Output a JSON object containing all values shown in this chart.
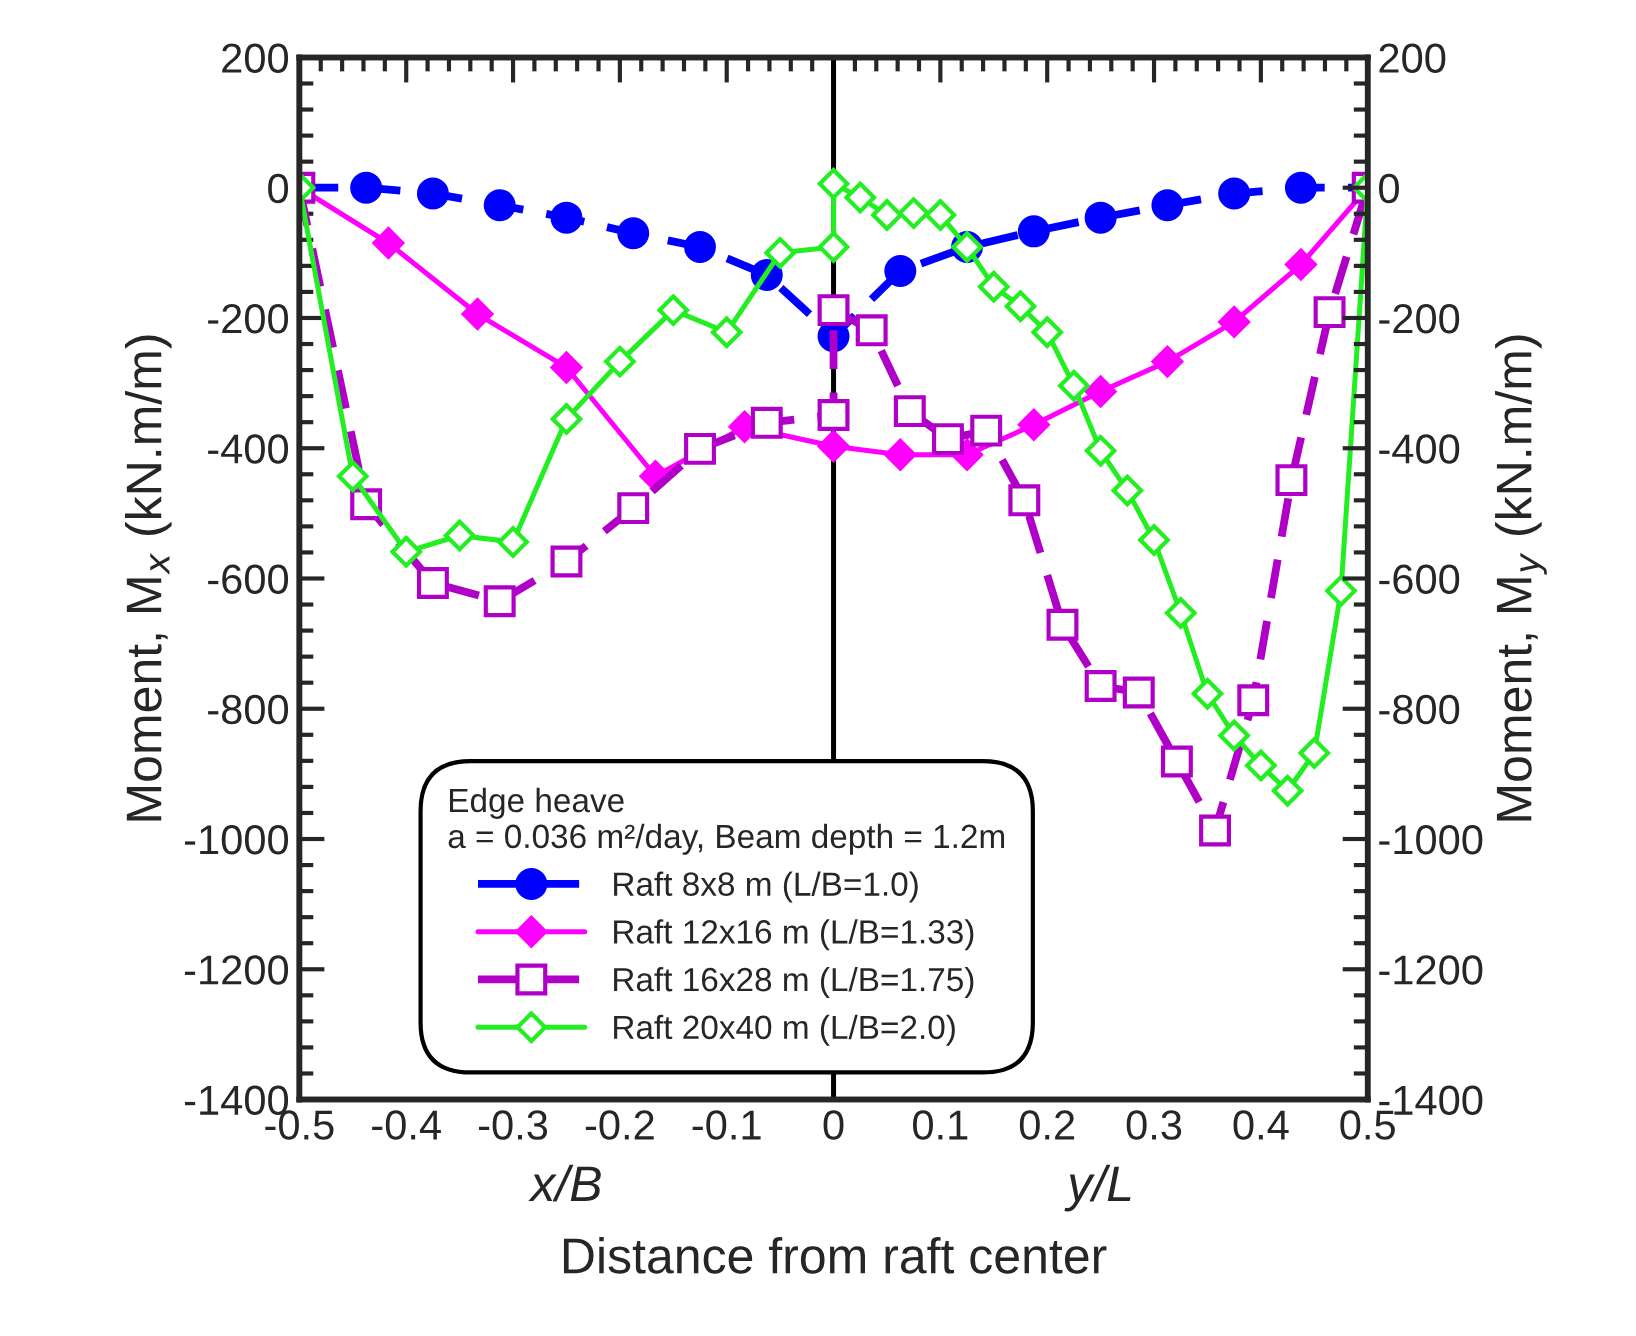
{
  "chart_data": {
    "type": "line",
    "xlabel": "Distance from raft center",
    "ylabel": "Moment, M$_{x}$ (kN.m/m)",
    "y2label": "Moment, M$_{y}$ (kN.m/m)",
    "legend_title": "Edge heave\na = 0.036 m²/day, Beam depth = 1.2m",
    "annotations": [
      "x/B",
      "y/L"
    ],
    "xlim": [
      -0.5,
      0.5
    ],
    "xticks": [
      -0.5,
      -0.4,
      -0.3,
      -0.2,
      -0.1,
      0,
      0.1,
      0.2,
      0.3,
      0.4,
      0.5
    ],
    "ylim": [
      -1400,
      200
    ],
    "yticks": [
      -1400,
      -1200,
      -1000,
      -800,
      -600,
      -400,
      -200,
      0,
      200
    ],
    "y2lim": [
      -1400,
      200
    ],
    "y2ticks": [
      -1400,
      -1200,
      -1000,
      -800,
      -600,
      -400,
      -200,
      0,
      200
    ],
    "grid": false,
    "legend": "bottom",
    "ref_lines": [
      {
        "axis": "x",
        "value": 0,
        "color": "#000000"
      }
    ],
    "series": [
      {
        "name": "Raft 8x8 m (L/B=1.0)",
        "color": "#0000ff",
        "marker": "circle",
        "line_style": "dashed",
        "x": [
          -0.5,
          -0.4375,
          -0.375,
          -0.3125,
          -0.25,
          -0.1875,
          -0.125,
          -0.0625,
          0,
          0.0625,
          0.125,
          0.1875,
          0.25,
          0.3125,
          0.375,
          0.4375,
          0.5
        ],
        "values": [
          0,
          0,
          -9,
          -27,
          -46,
          -70,
          -91,
          -134,
          -228,
          -128,
          -91,
          -67,
          -46,
          -27,
          -9,
          0,
          0
        ]
      },
      {
        "name": "Raft 12x16 m (L/B=1.33)",
        "color": "#ff00ff",
        "marker": "diamond",
        "line_style": "solid",
        "x": [
          -0.5,
          -0.4167,
          -0.3333,
          -0.25,
          -0.1667,
          -0.0833,
          0,
          0.0625,
          0.125,
          0.1875,
          0.25,
          0.3125,
          0.375,
          0.4375,
          0.5
        ],
        "values": [
          0,
          -85,
          -194,
          -276,
          -443,
          -367,
          -397,
          -410,
          -410,
          -364,
          -313,
          -267,
          -206,
          -118,
          0
        ]
      },
      {
        "name": "Raft 16x28 m (L/B=1.75)",
        "color": "#b000c8",
        "marker": "square",
        "line_style": "dashed",
        "x": [
          -0.5,
          -0.4375,
          -0.375,
          -0.3125,
          -0.25,
          -0.1875,
          -0.125,
          -0.0625,
          0,
          0,
          0.0357,
          0.0714,
          0.1071,
          0.1429,
          0.1786,
          0.2143,
          0.25,
          0.2857,
          0.3214,
          0.3571,
          0.3929,
          0.4286,
          0.4643,
          0.5
        ],
        "values": [
          0,
          -486,
          -607,
          -635,
          -574,
          -492,
          -401,
          -361,
          -349,
          -188,
          -219,
          -343,
          -386,
          -373,
          -480,
          -671,
          -765,
          -775,
          -881,
          -987,
          -787,
          -449,
          -191,
          0
        ]
      },
      {
        "name": "Raft 20x40 m (L/B=2.0)",
        "color": "#22ee22",
        "marker": "diamond",
        "line_style": "solid",
        "x": [
          -0.5,
          -0.45,
          -0.4,
          -0.35,
          -0.3,
          -0.25,
          -0.2,
          -0.15,
          -0.1,
          -0.05,
          0,
          0,
          0.025,
          0.05,
          0.075,
          0.1,
          0.125,
          0.15,
          0.175,
          0.2,
          0.225,
          0.25,
          0.275,
          0.3,
          0.325,
          0.35,
          0.375,
          0.4,
          0.425,
          0.45,
          0.475,
          0.5
        ],
        "values": [
          0,
          -443,
          -559,
          -534,
          -544,
          -355,
          -267,
          -188,
          -222,
          -100,
          -91,
          6,
          -15,
          -42,
          -39,
          -42,
          -91,
          -152,
          -182,
          -222,
          -304,
          -404,
          -465,
          -541,
          -653,
          -777,
          -841,
          -887,
          -926,
          -868,
          -619,
          0
        ]
      }
    ]
  }
}
